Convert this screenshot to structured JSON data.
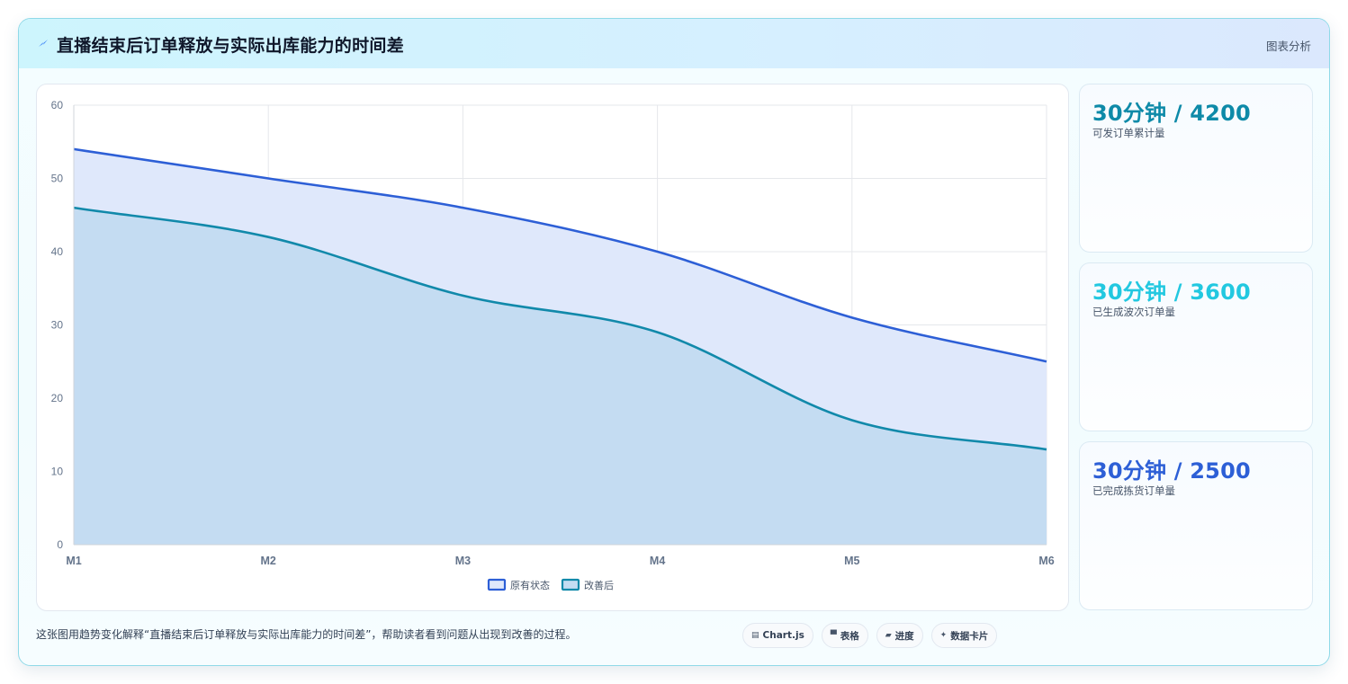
{
  "header": {
    "title": "直播结束后订单释放与实际出库能力的时间差",
    "icon": "lightning-icon",
    "tag": "图表分析"
  },
  "chart_data": {
    "type": "area",
    "title": "",
    "xlabel": "",
    "ylabel": "",
    "categories": [
      "M1",
      "M2",
      "M3",
      "M4",
      "M5",
      "M6"
    ],
    "ylim": [
      0,
      60
    ],
    "yticks": [
      0,
      10,
      20,
      30,
      40,
      50,
      60
    ],
    "grid": true,
    "legend_position": "bottom",
    "series": [
      {
        "name": "原有状态",
        "values": [
          54,
          50,
          46,
          40,
          31,
          25
        ],
        "color": "#2d5fd6",
        "fill": "#dfe8fb"
      },
      {
        "name": "改善后",
        "values": [
          46,
          42,
          34,
          29,
          17,
          13
        ],
        "color": "#1189aa",
        "fill": "#c4dcf2"
      }
    ]
  },
  "stats": [
    {
      "value": "30分钟 / 4200",
      "label": "可发订单累计量",
      "color": "#0e8aa8"
    },
    {
      "value": "30分钟 / 3600",
      "label": "已生成波次订单量",
      "color": "#22c8e0"
    },
    {
      "value": "30分钟 / 2500",
      "label": "已完成拣货订单量",
      "color": "#2d5fd6"
    }
  ],
  "footer": {
    "text": "这张图用趋势变化解释“直播结束后订单释放与实际出库能力的时间差”，帮助读者看到问题从出现到改善的过程。"
  },
  "pills": [
    {
      "icon": "chart-icon",
      "glyph": "▤",
      "label": "Chart.js"
    },
    {
      "icon": "table-icon",
      "glyph": "▀",
      "label": "表格"
    },
    {
      "icon": "progress-icon",
      "glyph": "▰",
      "label": "进度"
    },
    {
      "icon": "sparkle-icon",
      "glyph": "✦",
      "label": "数据卡片"
    }
  ]
}
